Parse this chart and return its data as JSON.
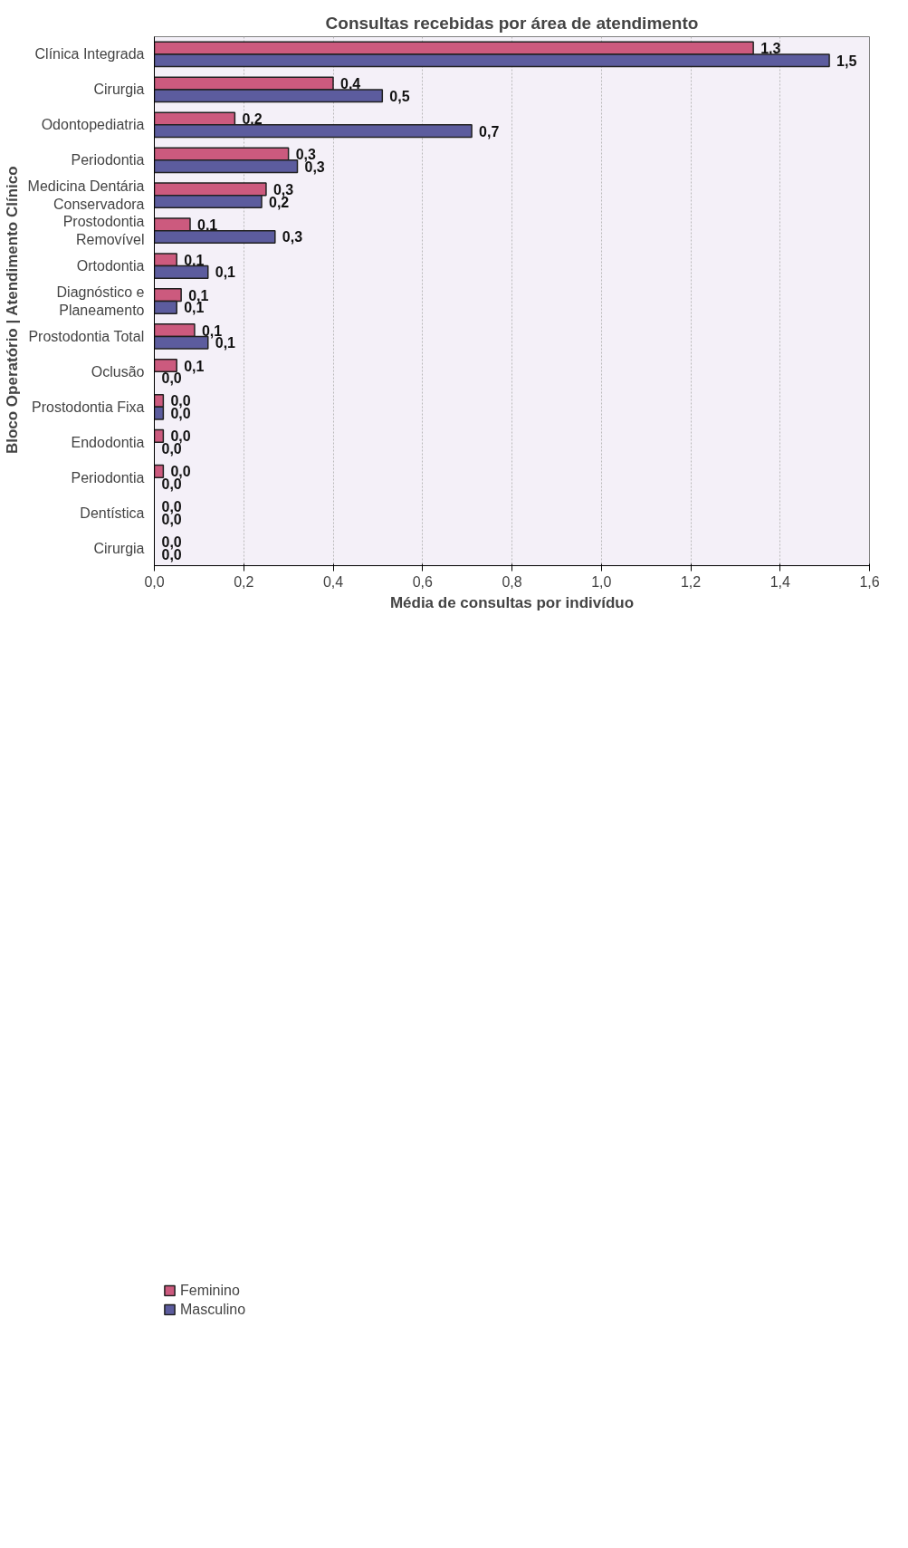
{
  "chart_data": {
    "type": "bar",
    "orientation": "horizontal",
    "title": "Consultas recebidas por área de atendimento",
    "xlabel": "Média de consultas por indivíduo",
    "ylabel": "Bloco Operatório   |   Atendimento Clínico",
    "categories": [
      "Clínica Integrada",
      "Cirurgia",
      "Odontopediatria",
      "Periodontia",
      "Medicina Dentária Conservadora",
      "Prostodontia Removível",
      "Ortodontia",
      "Diagnóstico e Planeamento",
      "Prostodontia Total",
      "Oclusão",
      "Prostodontia Fixa",
      "Endodontia",
      "Periodontia",
      "Dentística",
      "Cirurgia"
    ],
    "series": [
      {
        "name": "Feminino",
        "color": "#cc5a7e",
        "values": [
          1.34,
          0.4,
          0.18,
          0.3,
          0.25,
          0.08,
          0.05,
          0.06,
          0.09,
          0.05,
          0.02,
          0.02,
          0.02,
          0,
          0
        ],
        "value_labels": [
          "1,3",
          "0,4",
          "0,2",
          "0,3",
          "0,3",
          "0,1",
          "0,1",
          "0,1",
          "0,1",
          "0,1",
          "0,0",
          "0,0",
          "0,0",
          "0,0",
          "0,0"
        ]
      },
      {
        "name": "Masculino",
        "color": "#5c5c9e",
        "values": [
          1.51,
          0.51,
          0.71,
          0.32,
          0.24,
          0.27,
          0.12,
          0.05,
          0.12,
          0,
          0.02,
          0,
          0,
          0,
          0
        ],
        "value_labels": [
          "1,5",
          "0,5",
          "0,7",
          "0,3",
          "0,2",
          "0,3",
          "0,1",
          "0,1",
          "0,1",
          "0,0",
          "0,0",
          "0,0",
          "0,0",
          "0,0",
          "0,0"
        ]
      }
    ],
    "xlim": [
      0,
      1.6
    ],
    "xticks": [
      {
        "value": 0,
        "label": "0,0"
      },
      {
        "value": 0.2,
        "label": "0,2"
      },
      {
        "value": 0.4,
        "label": "0,4"
      },
      {
        "value": 0.6,
        "label": "0,6"
      },
      {
        "value": 0.8,
        "label": "0,8"
      },
      {
        "value": 1.0,
        "label": "1,0"
      },
      {
        "value": 1.2,
        "label": "1,2"
      },
      {
        "value": 1.4,
        "label": "1,4"
      },
      {
        "value": 1.6,
        "label": "1,6"
      }
    ],
    "grid": "x",
    "legend": "bottom left"
  }
}
